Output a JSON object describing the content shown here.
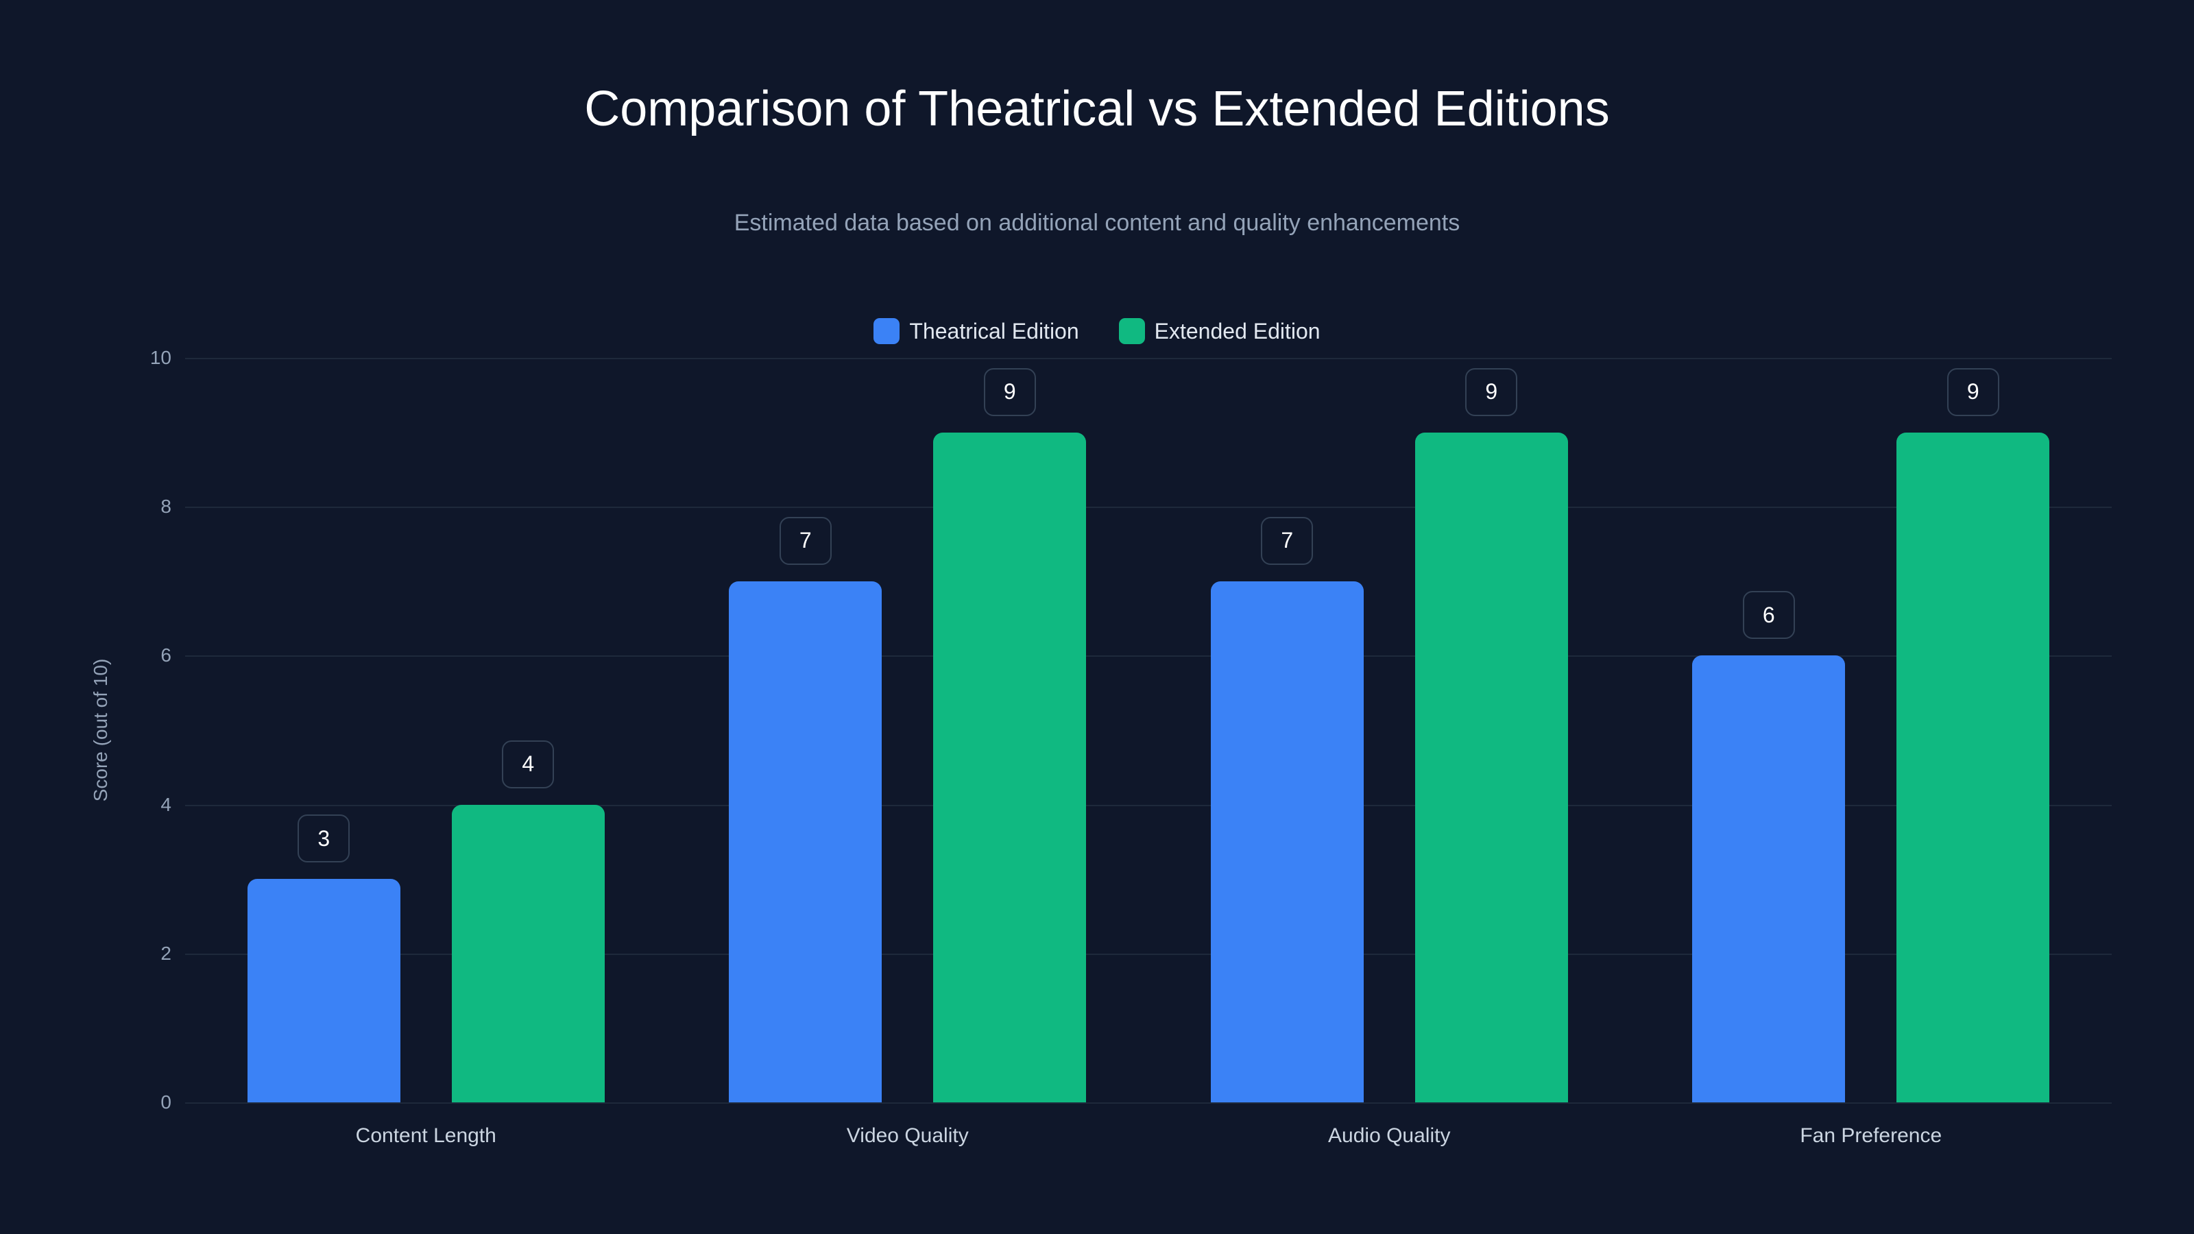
{
  "header": {
    "title": "Comparison of Theatrical vs Extended Editions",
    "subtitle": "Estimated data based on additional content and quality enhancements"
  },
  "legend": [
    {
      "label": "Theatrical Edition",
      "color": "#3b82f6"
    },
    {
      "label": "Extended Edition",
      "color": "#10b981"
    }
  ],
  "axis": {
    "ylabel": "Score (out of 10)",
    "yticks": [
      "0",
      "2",
      "4",
      "6",
      "8",
      "10"
    ]
  },
  "chart_data": {
    "type": "bar",
    "title": "Comparison of Theatrical vs Extended Editions",
    "subtitle": "Estimated data based on additional content and quality enhancements",
    "categories": [
      "Content Length",
      "Video Quality",
      "Audio Quality",
      "Fan Preference"
    ],
    "series": [
      {
        "name": "Theatrical Edition",
        "color": "#3b82f6",
        "values": [
          3,
          7,
          7,
          6
        ]
      },
      {
        "name": "Extended Edition",
        "color": "#10b981",
        "values": [
          4,
          9,
          9,
          9
        ]
      }
    ],
    "xlabel": "",
    "ylabel": "Score (out of 10)",
    "ylim": [
      0,
      10
    ],
    "yticks": [
      0,
      2,
      4,
      6,
      8,
      10
    ],
    "grid": true,
    "legend_position": "top-center",
    "data_labels": true
  }
}
